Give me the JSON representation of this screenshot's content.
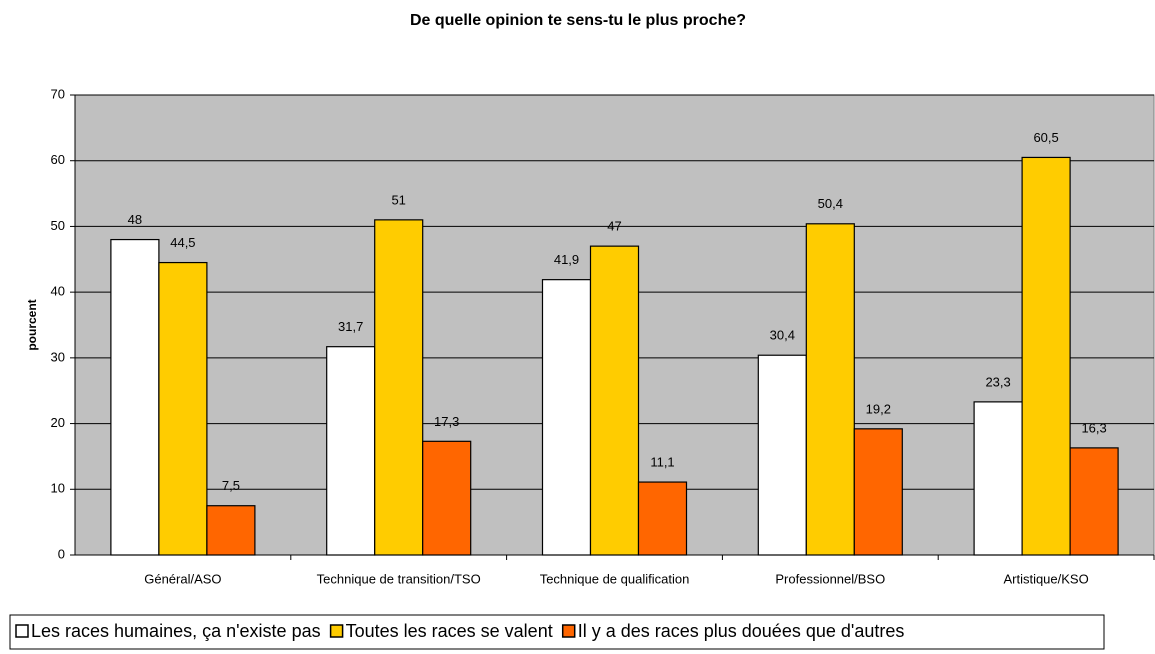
{
  "chart_data": {
    "type": "bar",
    "title": "De quelle opinion te sens-tu le plus proche?",
    "ylabel": "pourcent",
    "categories": [
      "Général/ASO",
      "Technique de transition/TSO",
      "Technique de qualification",
      "Professionnel/BSO",
      "Artistique/KSO"
    ],
    "series": [
      {
        "name": "Les races humaines, ça n'existe pas",
        "color": "#ffffff",
        "values": [
          48,
          31.7,
          41.9,
          30.4,
          23.3
        ],
        "value_labels": [
          "48",
          "31,7",
          "41,9",
          "30,4",
          "23,3"
        ]
      },
      {
        "name": "Toutes les races se valent",
        "color": "#ffcc00",
        "values": [
          44.5,
          51,
          47,
          50.4,
          60.5
        ],
        "value_labels": [
          "44,5",
          "51",
          "47",
          "50,4",
          "60,5"
        ]
      },
      {
        "name": "Il y a des races plus douées que d'autres",
        "color": "#ff6600",
        "values": [
          7.5,
          17.3,
          11.1,
          19.2,
          16.3
        ],
        "value_labels": [
          "7,5",
          "17,3",
          "11,1",
          "19,2",
          "16,3"
        ]
      }
    ],
    "ylim": [
      0,
      70
    ],
    "yticks": [
      0,
      10,
      20,
      30,
      40,
      50,
      60,
      70
    ],
    "grid": true,
    "plot_background": "#c0c0c0",
    "legend": "bottom"
  }
}
